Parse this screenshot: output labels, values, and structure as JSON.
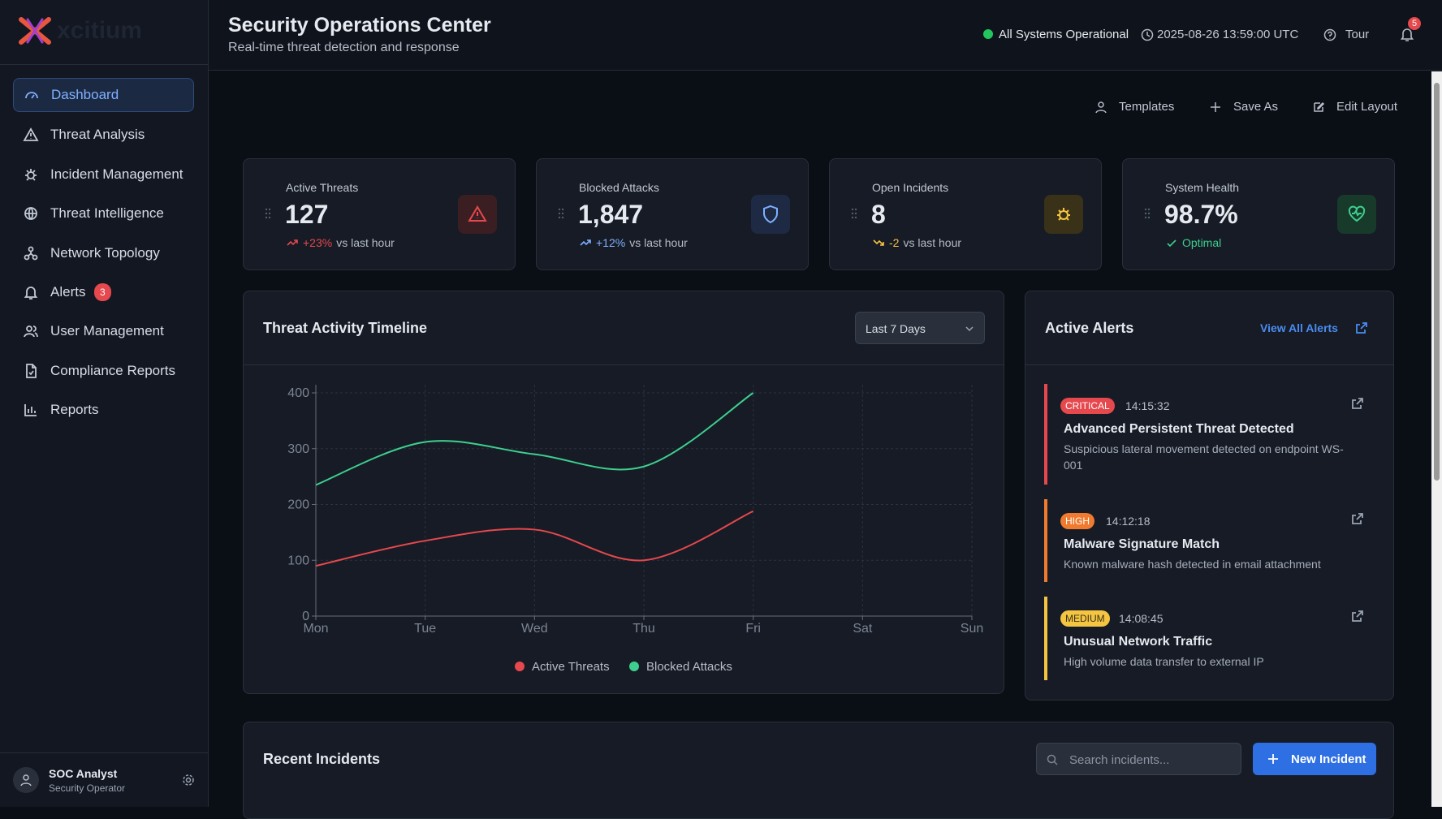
{
  "sidebar": {
    "brand": "xcitium",
    "nav": [
      "Dashboard",
      "Threat Analysis",
      "Incident Management",
      "Threat Intelligence",
      "Network Topology",
      "Alerts",
      "User Management",
      "Compliance Reports",
      "Reports"
    ],
    "alerts_badge": "3",
    "user": {
      "name": "SOC Analyst",
      "role": "Security Operator"
    }
  },
  "header": {
    "title": "Security Operations Center",
    "subtitle": "Real-time threat detection and response",
    "status": "All Systems Operational",
    "timestamp": "2025-08-26 13:59:00 UTC",
    "tour": "Tour",
    "notifications": "5"
  },
  "toolbar": [
    "Templates",
    "Save As",
    "Edit Layout"
  ],
  "cards": [
    {
      "label": "Active Threats",
      "value": "127",
      "change": "+23%",
      "note": "vs last hour"
    },
    {
      "label": "Blocked Attacks",
      "value": "1,847",
      "change": "+12%",
      "note": "vs last hour"
    },
    {
      "label": "Open Incidents",
      "value": "8",
      "change": "-2",
      "note": "vs last hour"
    },
    {
      "label": "System Health",
      "value": "98.7%",
      "change": "Optimal"
    }
  ],
  "timeline": {
    "title": "Threat Activity Timeline",
    "range": "Last 7 Days"
  },
  "chart_data": {
    "type": "line",
    "categories": [
      "Mon",
      "Tue",
      "Wed",
      "Thu",
      "Fri",
      "Sat",
      "Sun"
    ],
    "series": [
      {
        "name": "Active Threats",
        "color": "#e5484d",
        "values": [
          90,
          135,
          155,
          100,
          188,
          null,
          null
        ]
      },
      {
        "name": "Blocked Attacks",
        "color": "#3ecf8e",
        "values": [
          235,
          312,
          290,
          268,
          400,
          null,
          null
        ]
      }
    ],
    "ylim": [
      0,
      400
    ],
    "yticks": [
      0,
      100,
      200,
      300,
      400
    ],
    "grid": true
  },
  "alerts": {
    "title": "Active Alerts",
    "view_all": "View All Alerts",
    "items": [
      {
        "severity": "CRITICAL",
        "time": "14:15:32",
        "title": "Advanced Persistent Threat Detected",
        "description": "Suspicious lateral movement detected on endpoint WS-001"
      },
      {
        "severity": "HIGH",
        "time": "14:12:18",
        "title": "Malware Signature Match",
        "description": "Known malware hash detected in email attachment"
      },
      {
        "severity": "MEDIUM",
        "time": "14:08:45",
        "title": "Unusual Network Traffic",
        "description": "High volume data transfer to external IP"
      }
    ]
  },
  "incidents": {
    "title": "Recent Incidents",
    "search_placeholder": "Search incidents...",
    "new_button": "New Incident"
  }
}
